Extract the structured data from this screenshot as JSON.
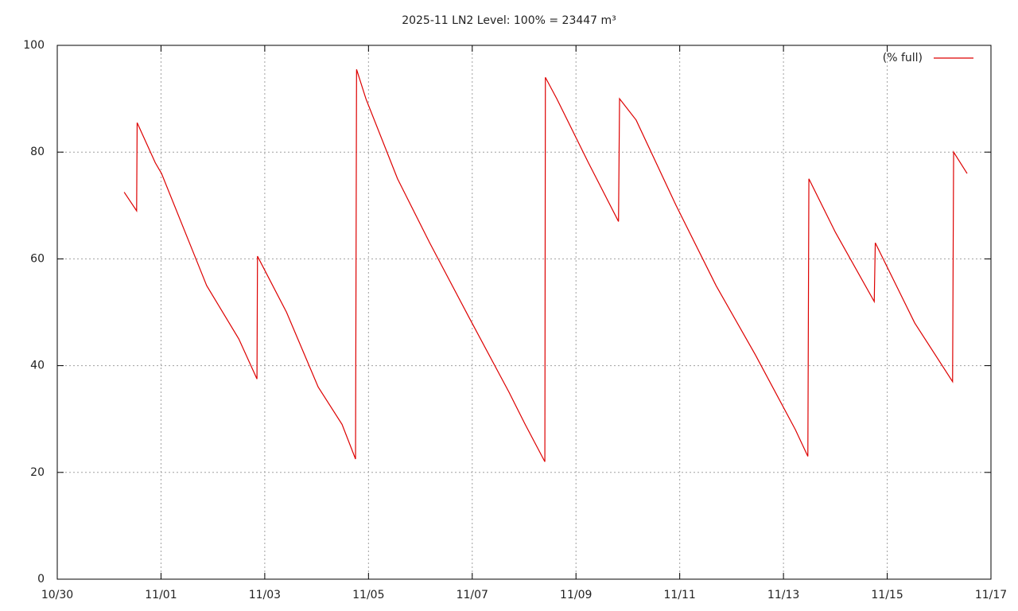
{
  "chart_data": {
    "type": "line",
    "title": "2025-11 LN2 Level: 100% = 23447 m³",
    "x": [
      1.29,
      1.53,
      1.54,
      1.89,
      2.01,
      2.88,
      3.5,
      3.85,
      3.86,
      4.42,
      5.03,
      5.49,
      5.75,
      5.77,
      5.95,
      6.56,
      7.18,
      7.94,
      8.71,
      9.02,
      9.4,
      9.41,
      9.63,
      10.24,
      10.82,
      10.84,
      11.16,
      11.93,
      12.7,
      13.46,
      14.23,
      14.47,
      14.49,
      15.0,
      15.75,
      15.77,
      16.53,
      17.26,
      17.28,
      17.54
    ],
    "series": [
      {
        "name": "(% full)",
        "color": "#dd0000",
        "values": [
          72.5,
          69,
          85.5,
          78,
          76,
          55,
          45,
          37.5,
          60.5,
          50,
          36,
          29,
          22.5,
          95.5,
          90,
          75,
          63,
          49,
          35,
          29,
          22,
          94,
          90,
          78,
          67,
          90,
          86,
          70,
          55,
          42,
          28,
          23,
          75,
          65,
          52,
          63,
          48,
          37,
          80,
          76
        ]
      }
    ],
    "xlim": [
      0,
      18
    ],
    "xticks": [
      {
        "value": 0,
        "label": "10/30"
      },
      {
        "value": 2,
        "label": "11/01"
      },
      {
        "value": 4,
        "label": "11/03"
      },
      {
        "value": 6,
        "label": "11/05"
      },
      {
        "value": 8,
        "label": "11/07"
      },
      {
        "value": 10,
        "label": "11/09"
      },
      {
        "value": 12,
        "label": "11/11"
      },
      {
        "value": 14,
        "label": "11/13"
      },
      {
        "value": 16,
        "label": "11/15"
      },
      {
        "value": 18,
        "label": "11/17"
      }
    ],
    "ylim": [
      0,
      100
    ],
    "yticks": [
      0,
      20,
      40,
      60,
      80,
      100
    ],
    "grid": true,
    "legend": "top-right"
  }
}
